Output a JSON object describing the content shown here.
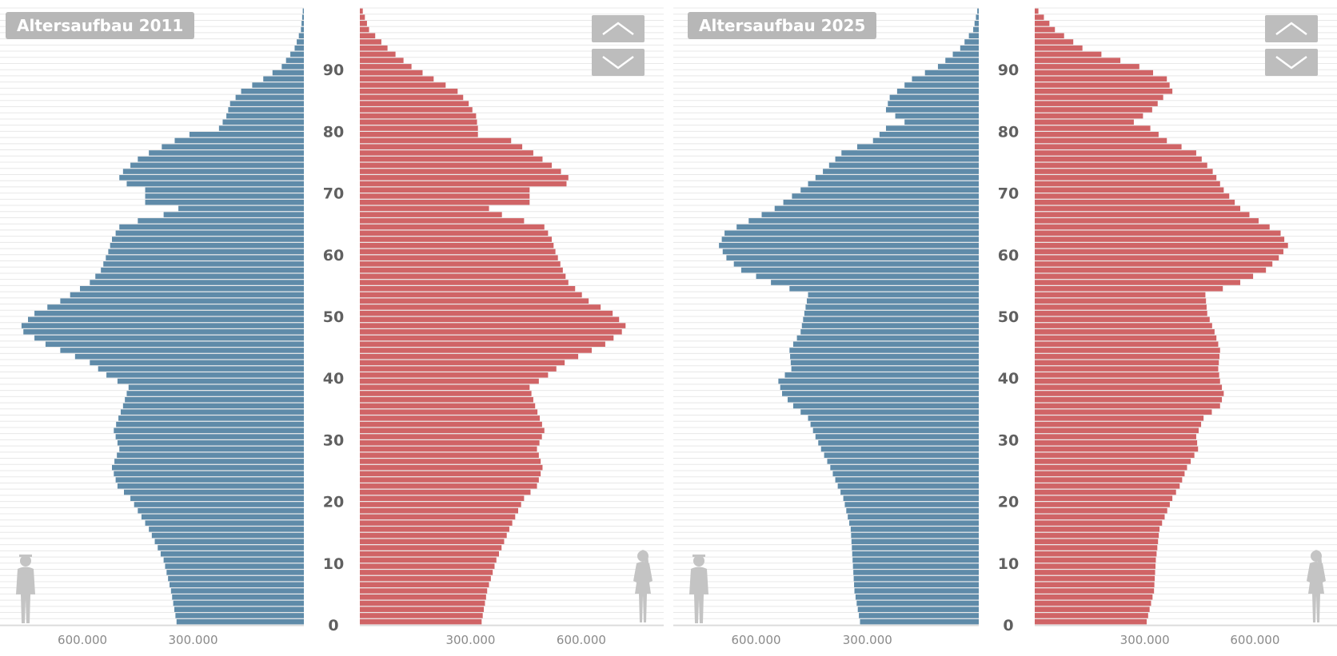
{
  "colors": {
    "male": "#5f8ba9",
    "female": "#d06466",
    "badge": "#b7b7b7",
    "grid": "#e8e8e8",
    "silhouette": "#c4c4c4"
  },
  "icons": {
    "up": "chevron-up-icon",
    "down": "chevron-down-icon",
    "male": "male-silhouette-icon",
    "female": "female-silhouette-icon"
  },
  "chart_data": [
    {
      "type": "bar",
      "orientation": "horizontal-population-pyramid",
      "title": "Altersaufbau 2011",
      "age_ticks": [
        0,
        10,
        20,
        30,
        40,
        50,
        60,
        70,
        80,
        90
      ],
      "x_ticks_male": [
        "600.000",
        "300.000"
      ],
      "x_ticks_female": [
        "300.000",
        "600.000"
      ],
      "x_max": 780000,
      "male_key": [
        [
          0,
          345000
        ],
        [
          5,
          360000
        ],
        [
          10,
          380000
        ],
        [
          15,
          420000
        ],
        [
          20,
          470000
        ],
        [
          22,
          505000
        ],
        [
          25,
          520000
        ],
        [
          28,
          500000
        ],
        [
          31,
          515000
        ],
        [
          35,
          490000
        ],
        [
          38,
          475000
        ],
        [
          40,
          535000
        ],
        [
          42,
          580000
        ],
        [
          45,
          700000
        ],
        [
          47,
          760000
        ],
        [
          48,
          765000
        ],
        [
          50,
          730000
        ],
        [
          52,
          660000
        ],
        [
          55,
          580000
        ],
        [
          57,
          550000
        ],
        [
          60,
          530000
        ],
        [
          62,
          520000
        ],
        [
          64,
          500000
        ],
        [
          65,
          450000
        ],
        [
          66,
          380000
        ],
        [
          67,
          340000
        ],
        [
          68,
          430000
        ],
        [
          70,
          430000
        ],
        [
          71,
          480000
        ],
        [
          72,
          500000
        ],
        [
          73,
          490000
        ],
        [
          75,
          450000
        ],
        [
          76,
          420000
        ],
        [
          78,
          350000
        ],
        [
          79,
          310000
        ],
        [
          80,
          230000
        ],
        [
          82,
          210000
        ],
        [
          84,
          200000
        ],
        [
          86,
          170000
        ],
        [
          88,
          110000
        ],
        [
          90,
          60000
        ],
        [
          93,
          25000
        ],
        [
          96,
          8000
        ],
        [
          99,
          3000
        ]
      ],
      "female_key": [
        [
          0,
          330000
        ],
        [
          5,
          345000
        ],
        [
          10,
          370000
        ],
        [
          15,
          405000
        ],
        [
          20,
          445000
        ],
        [
          22,
          480000
        ],
        [
          25,
          495000
        ],
        [
          28,
          480000
        ],
        [
          31,
          500000
        ],
        [
          35,
          475000
        ],
        [
          38,
          460000
        ],
        [
          40,
          510000
        ],
        [
          42,
          555000
        ],
        [
          45,
          665000
        ],
        [
          47,
          710000
        ],
        [
          48,
          720000
        ],
        [
          50,
          685000
        ],
        [
          52,
          620000
        ],
        [
          55,
          565000
        ],
        [
          57,
          550000
        ],
        [
          60,
          530000
        ],
        [
          62,
          520000
        ],
        [
          64,
          500000
        ],
        [
          65,
          445000
        ],
        [
          66,
          385000
        ],
        [
          67,
          350000
        ],
        [
          68,
          460000
        ],
        [
          70,
          460000
        ],
        [
          71,
          560000
        ],
        [
          72,
          565000
        ],
        [
          73,
          545000
        ],
        [
          75,
          495000
        ],
        [
          76,
          470000
        ],
        [
          78,
          410000
        ],
        [
          79,
          320000
        ],
        [
          80,
          320000
        ],
        [
          82,
          315000
        ],
        [
          84,
          295000
        ],
        [
          86,
          265000
        ],
        [
          88,
          200000
        ],
        [
          90,
          140000
        ],
        [
          93,
          75000
        ],
        [
          96,
          25000
        ],
        [
          99,
          8000
        ]
      ]
    },
    {
      "type": "bar",
      "orientation": "horizontal-population-pyramid",
      "title": "Altersaufbau 2025",
      "age_ticks": [
        0,
        10,
        20,
        30,
        40,
        50,
        60,
        70,
        80,
        90
      ],
      "x_ticks_male": [
        "600.000",
        "300.000"
      ],
      "x_ticks_female": [
        "300.000",
        "600.000"
      ],
      "x_max": 780000,
      "male_key": [
        [
          0,
          320000
        ],
        [
          5,
          335000
        ],
        [
          10,
          340000
        ],
        [
          15,
          345000
        ],
        [
          20,
          365000
        ],
        [
          22,
          380000
        ],
        [
          25,
          400000
        ],
        [
          28,
          425000
        ],
        [
          30,
          440000
        ],
        [
          33,
          460000
        ],
        [
          35,
          500000
        ],
        [
          37,
          530000
        ],
        [
          39,
          540000
        ],
        [
          41,
          505000
        ],
        [
          44,
          510000
        ],
        [
          47,
          480000
        ],
        [
          50,
          470000
        ],
        [
          53,
          460000
        ],
        [
          55,
          560000
        ],
        [
          57,
          640000
        ],
        [
          59,
          680000
        ],
        [
          61,
          700000
        ],
        [
          63,
          685000
        ],
        [
          65,
          620000
        ],
        [
          67,
          550000
        ],
        [
          70,
          480000
        ],
        [
          73,
          420000
        ],
        [
          76,
          370000
        ],
        [
          78,
          285000
        ],
        [
          80,
          250000
        ],
        [
          81,
          200000
        ],
        [
          83,
          250000
        ],
        [
          85,
          240000
        ],
        [
          86,
          220000
        ],
        [
          88,
          180000
        ],
        [
          90,
          110000
        ],
        [
          93,
          50000
        ],
        [
          96,
          15000
        ],
        [
          99,
          4000
        ]
      ],
      "female_key": [
        [
          0,
          305000
        ],
        [
          5,
          325000
        ],
        [
          10,
          330000
        ],
        [
          15,
          340000
        ],
        [
          20,
          375000
        ],
        [
          22,
          395000
        ],
        [
          25,
          415000
        ],
        [
          28,
          445000
        ],
        [
          30,
          440000
        ],
        [
          33,
          460000
        ],
        [
          35,
          505000
        ],
        [
          37,
          515000
        ],
        [
          39,
          505000
        ],
        [
          41,
          500000
        ],
        [
          44,
          505000
        ],
        [
          47,
          490000
        ],
        [
          50,
          470000
        ],
        [
          53,
          465000
        ],
        [
          55,
          560000
        ],
        [
          57,
          630000
        ],
        [
          59,
          665000
        ],
        [
          61,
          690000
        ],
        [
          63,
          670000
        ],
        [
          65,
          610000
        ],
        [
          67,
          560000
        ],
        [
          70,
          515000
        ],
        [
          73,
          485000
        ],
        [
          76,
          440000
        ],
        [
          78,
          360000
        ],
        [
          80,
          315000
        ],
        [
          81,
          270000
        ],
        [
          83,
          320000
        ],
        [
          85,
          350000
        ],
        [
          86,
          375000
        ],
        [
          88,
          360000
        ],
        [
          90,
          285000
        ],
        [
          93,
          130000
        ],
        [
          96,
          55000
        ],
        [
          99,
          10000
        ]
      ]
    }
  ]
}
